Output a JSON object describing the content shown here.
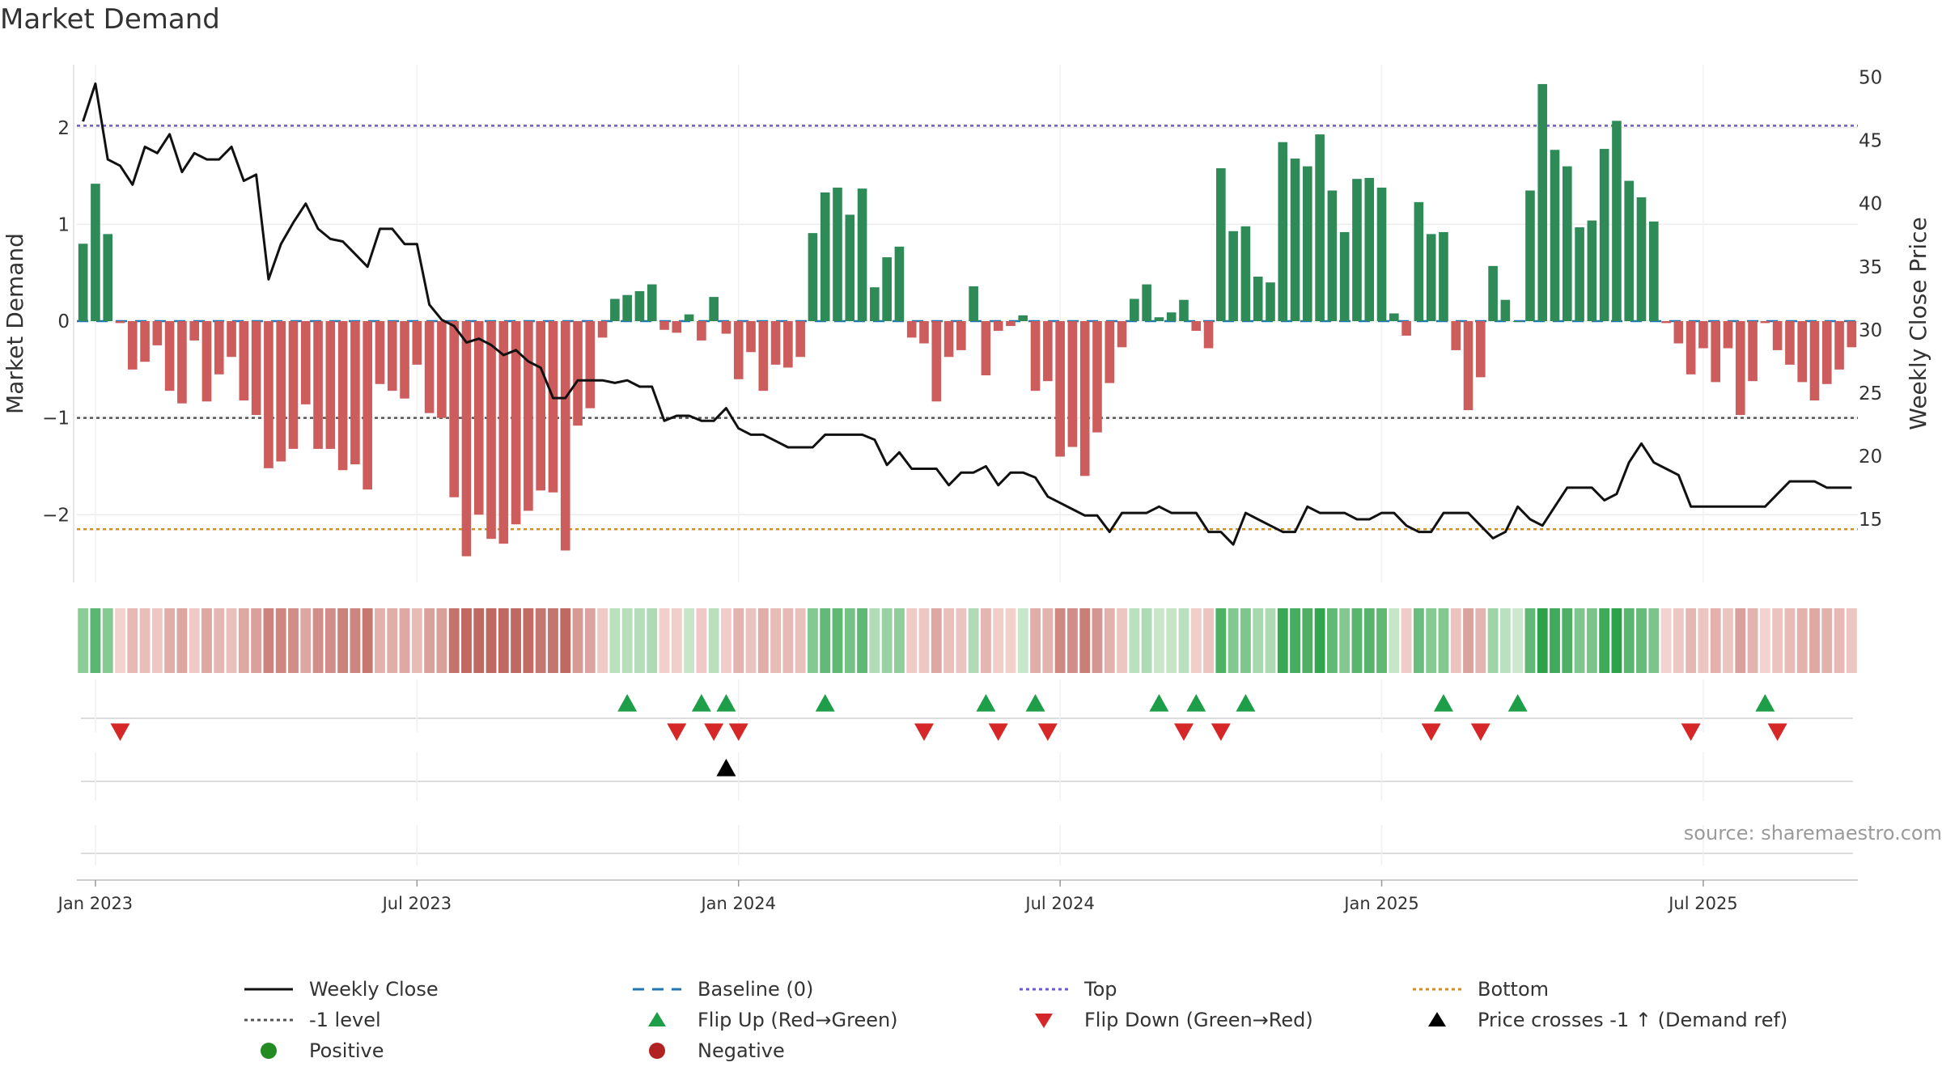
{
  "title": "Market Demand",
  "source_label": "source: sharemaestro.com",
  "colors": {
    "positive_bar": "#2e8b57",
    "negative_bar": "#cd5c5c",
    "close_line": "#111111",
    "baseline": "#1f77b4",
    "top": "#6a5acd",
    "minus1": "#555555",
    "bottom": "#d98c1e",
    "flip_up": "#1e9e48",
    "flip_down": "#d62728",
    "price_cross": "#000000",
    "positive_dot": "#228b22",
    "negative_dot": "#b22222"
  },
  "chart_data": {
    "type": "bar",
    "title": "Market Demand",
    "ylabel": "Market Demand",
    "y2label": "Weekly Close Price",
    "ylim": [
      -2.7,
      2.65
    ],
    "y2lim": [
      10,
      51
    ],
    "yticks": [
      "2",
      "1",
      "0",
      "−1",
      "−2"
    ],
    "yticks_values": [
      2,
      1,
      0,
      -1,
      -2
    ],
    "y2ticks": [
      "50",
      "45",
      "40",
      "35",
      "30",
      "25",
      "20",
      "15"
    ],
    "y2ticks_values": [
      50,
      45,
      40,
      35,
      30,
      25,
      20,
      15
    ],
    "xticks": [
      "Jan 2023",
      "Jul 2023",
      "Jan 2024",
      "Jul 2024",
      "Jan 2025",
      "Jul 2025"
    ],
    "xticks_week_index": [
      1.5,
      27.5,
      53.5,
      79.5,
      105.5,
      131.5
    ],
    "reference_lines": {
      "top": 2.02,
      "minus1": -1.0,
      "bottom": -2.15,
      "baseline": 0
    },
    "demand": [
      0.8,
      1.42,
      0.9,
      -0.02,
      -0.5,
      -0.42,
      -0.25,
      -0.72,
      -0.85,
      -0.2,
      -0.83,
      -0.55,
      -0.37,
      -0.82,
      -0.97,
      -1.52,
      -1.45,
      -1.32,
      -0.86,
      -1.32,
      -1.32,
      -1.54,
      -1.48,
      -1.74,
      -0.65,
      -0.72,
      -0.8,
      -0.45,
      -0.95,
      -1.0,
      -1.82,
      -2.43,
      -2.0,
      -2.25,
      -2.3,
      -2.1,
      -1.96,
      -1.75,
      -1.77,
      -2.37,
      -1.08,
      -0.9,
      -0.17,
      0.23,
      0.27,
      0.31,
      0.38,
      -0.09,
      -0.12,
      0.07,
      -0.2,
      0.25,
      -0.13,
      -0.6,
      -0.32,
      -0.72,
      -0.45,
      -0.48,
      -0.37,
      0.91,
      1.33,
      1.38,
      1.1,
      1.37,
      0.35,
      0.66,
      0.77,
      -0.17,
      -0.23,
      -0.83,
      -0.37,
      -0.3,
      0.36,
      -0.56,
      -0.1,
      -0.05,
      0.06,
      -0.72,
      -0.62,
      -1.4,
      -1.3,
      -1.6,
      -1.15,
      -0.64,
      -0.27,
      0.23,
      0.38,
      0.04,
      0.09,
      0.22,
      -0.1,
      -0.28,
      1.58,
      0.93,
      0.98,
      0.46,
      0.4,
      1.85,
      1.68,
      1.6,
      1.93,
      1.35,
      0.92,
      1.47,
      1.48,
      1.38,
      0.08,
      -0.15,
      1.23,
      0.9,
      0.92,
      -0.3,
      -0.92,
      -0.58,
      0.57,
      0.22,
      0.0,
      1.35,
      2.45,
      1.77,
      1.6,
      0.97,
      1.04,
      1.78,
      2.07,
      1.45,
      1.28,
      1.03,
      -0.02,
      -0.23,
      -0.55,
      -0.28,
      -0.63,
      -0.28,
      -0.97,
      -0.62,
      -0.02,
      -0.3,
      -0.45,
      -0.63,
      -0.82,
      -0.65,
      -0.5,
      -0.27
    ],
    "weekly_close": [
      46.5,
      49.5,
      43.5,
      43.0,
      41.5,
      44.5,
      44.0,
      45.5,
      42.5,
      44.0,
      43.5,
      43.5,
      44.5,
      41.8,
      42.3,
      34.0,
      36.8,
      38.5,
      40.0,
      38.0,
      37.2,
      37.0,
      36.0,
      35.0,
      38.0,
      38.0,
      36.8,
      36.8,
      32.0,
      30.8,
      30.3,
      29.0,
      29.3,
      28.8,
      28.0,
      28.4,
      27.5,
      27.0,
      24.6,
      24.6,
      26.0,
      26.0,
      26.0,
      25.8,
      26.0,
      25.5,
      25.5,
      22.8,
      23.2,
      23.2,
      22.8,
      22.8,
      23.8,
      22.2,
      21.7,
      21.7,
      21.2,
      20.7,
      20.7,
      20.7,
      21.7,
      21.7,
      21.7,
      21.7,
      21.3,
      19.3,
      20.3,
      19.0,
      19.0,
      19.0,
      17.7,
      18.7,
      18.7,
      19.2,
      17.7,
      18.7,
      18.7,
      18.3,
      16.8,
      16.3,
      15.8,
      15.3,
      15.3,
      14.0,
      15.5,
      15.5,
      15.5,
      16.0,
      15.5,
      15.5,
      15.5,
      14.0,
      14.0,
      13.0,
      15.5,
      15.0,
      14.5,
      14.0,
      14.0,
      16.0,
      15.5,
      15.5,
      15.5,
      15.0,
      15.0,
      15.5,
      15.5,
      14.5,
      14.0,
      14.0,
      15.5,
      15.5,
      15.5,
      14.5,
      13.5,
      14.0,
      16.0,
      15.0,
      14.5,
      16.0,
      17.5,
      17.5,
      17.5,
      16.5,
      17.0,
      19.5,
      21.0,
      19.5,
      19.0,
      18.5,
      16.0,
      16.0,
      16.0,
      16.0,
      16.0,
      16.0,
      16.0,
      17.0,
      18.0,
      18.0,
      18.0,
      17.5,
      17.5,
      17.5
    ],
    "flip_up_week_index": [
      44,
      50,
      52,
      60,
      73,
      77,
      87,
      90,
      94,
      110,
      116,
      136
    ],
    "flip_down_week_index": [
      3,
      48,
      51,
      53,
      68,
      74,
      78,
      89,
      92,
      109,
      113,
      130,
      137
    ],
    "price_cross_week_index": [
      52
    ]
  },
  "legend": [
    {
      "key": "close",
      "label": "Weekly Close"
    },
    {
      "key": "baseline",
      "label": "Baseline (0)"
    },
    {
      "key": "top",
      "label": "Top"
    },
    {
      "key": "bottom",
      "label": "Bottom"
    },
    {
      "key": "minus1",
      "label": "-1 level"
    },
    {
      "key": "flip_up",
      "label": "Flip Up (Red→Green)"
    },
    {
      "key": "flip_down",
      "label": "Flip Down (Green→Red)"
    },
    {
      "key": "price_cross",
      "label": "Price crosses -1 ↑ (Demand ref)"
    },
    {
      "key": "positive",
      "label": "Positive"
    },
    {
      "key": "negative",
      "label": "Negative"
    }
  ]
}
